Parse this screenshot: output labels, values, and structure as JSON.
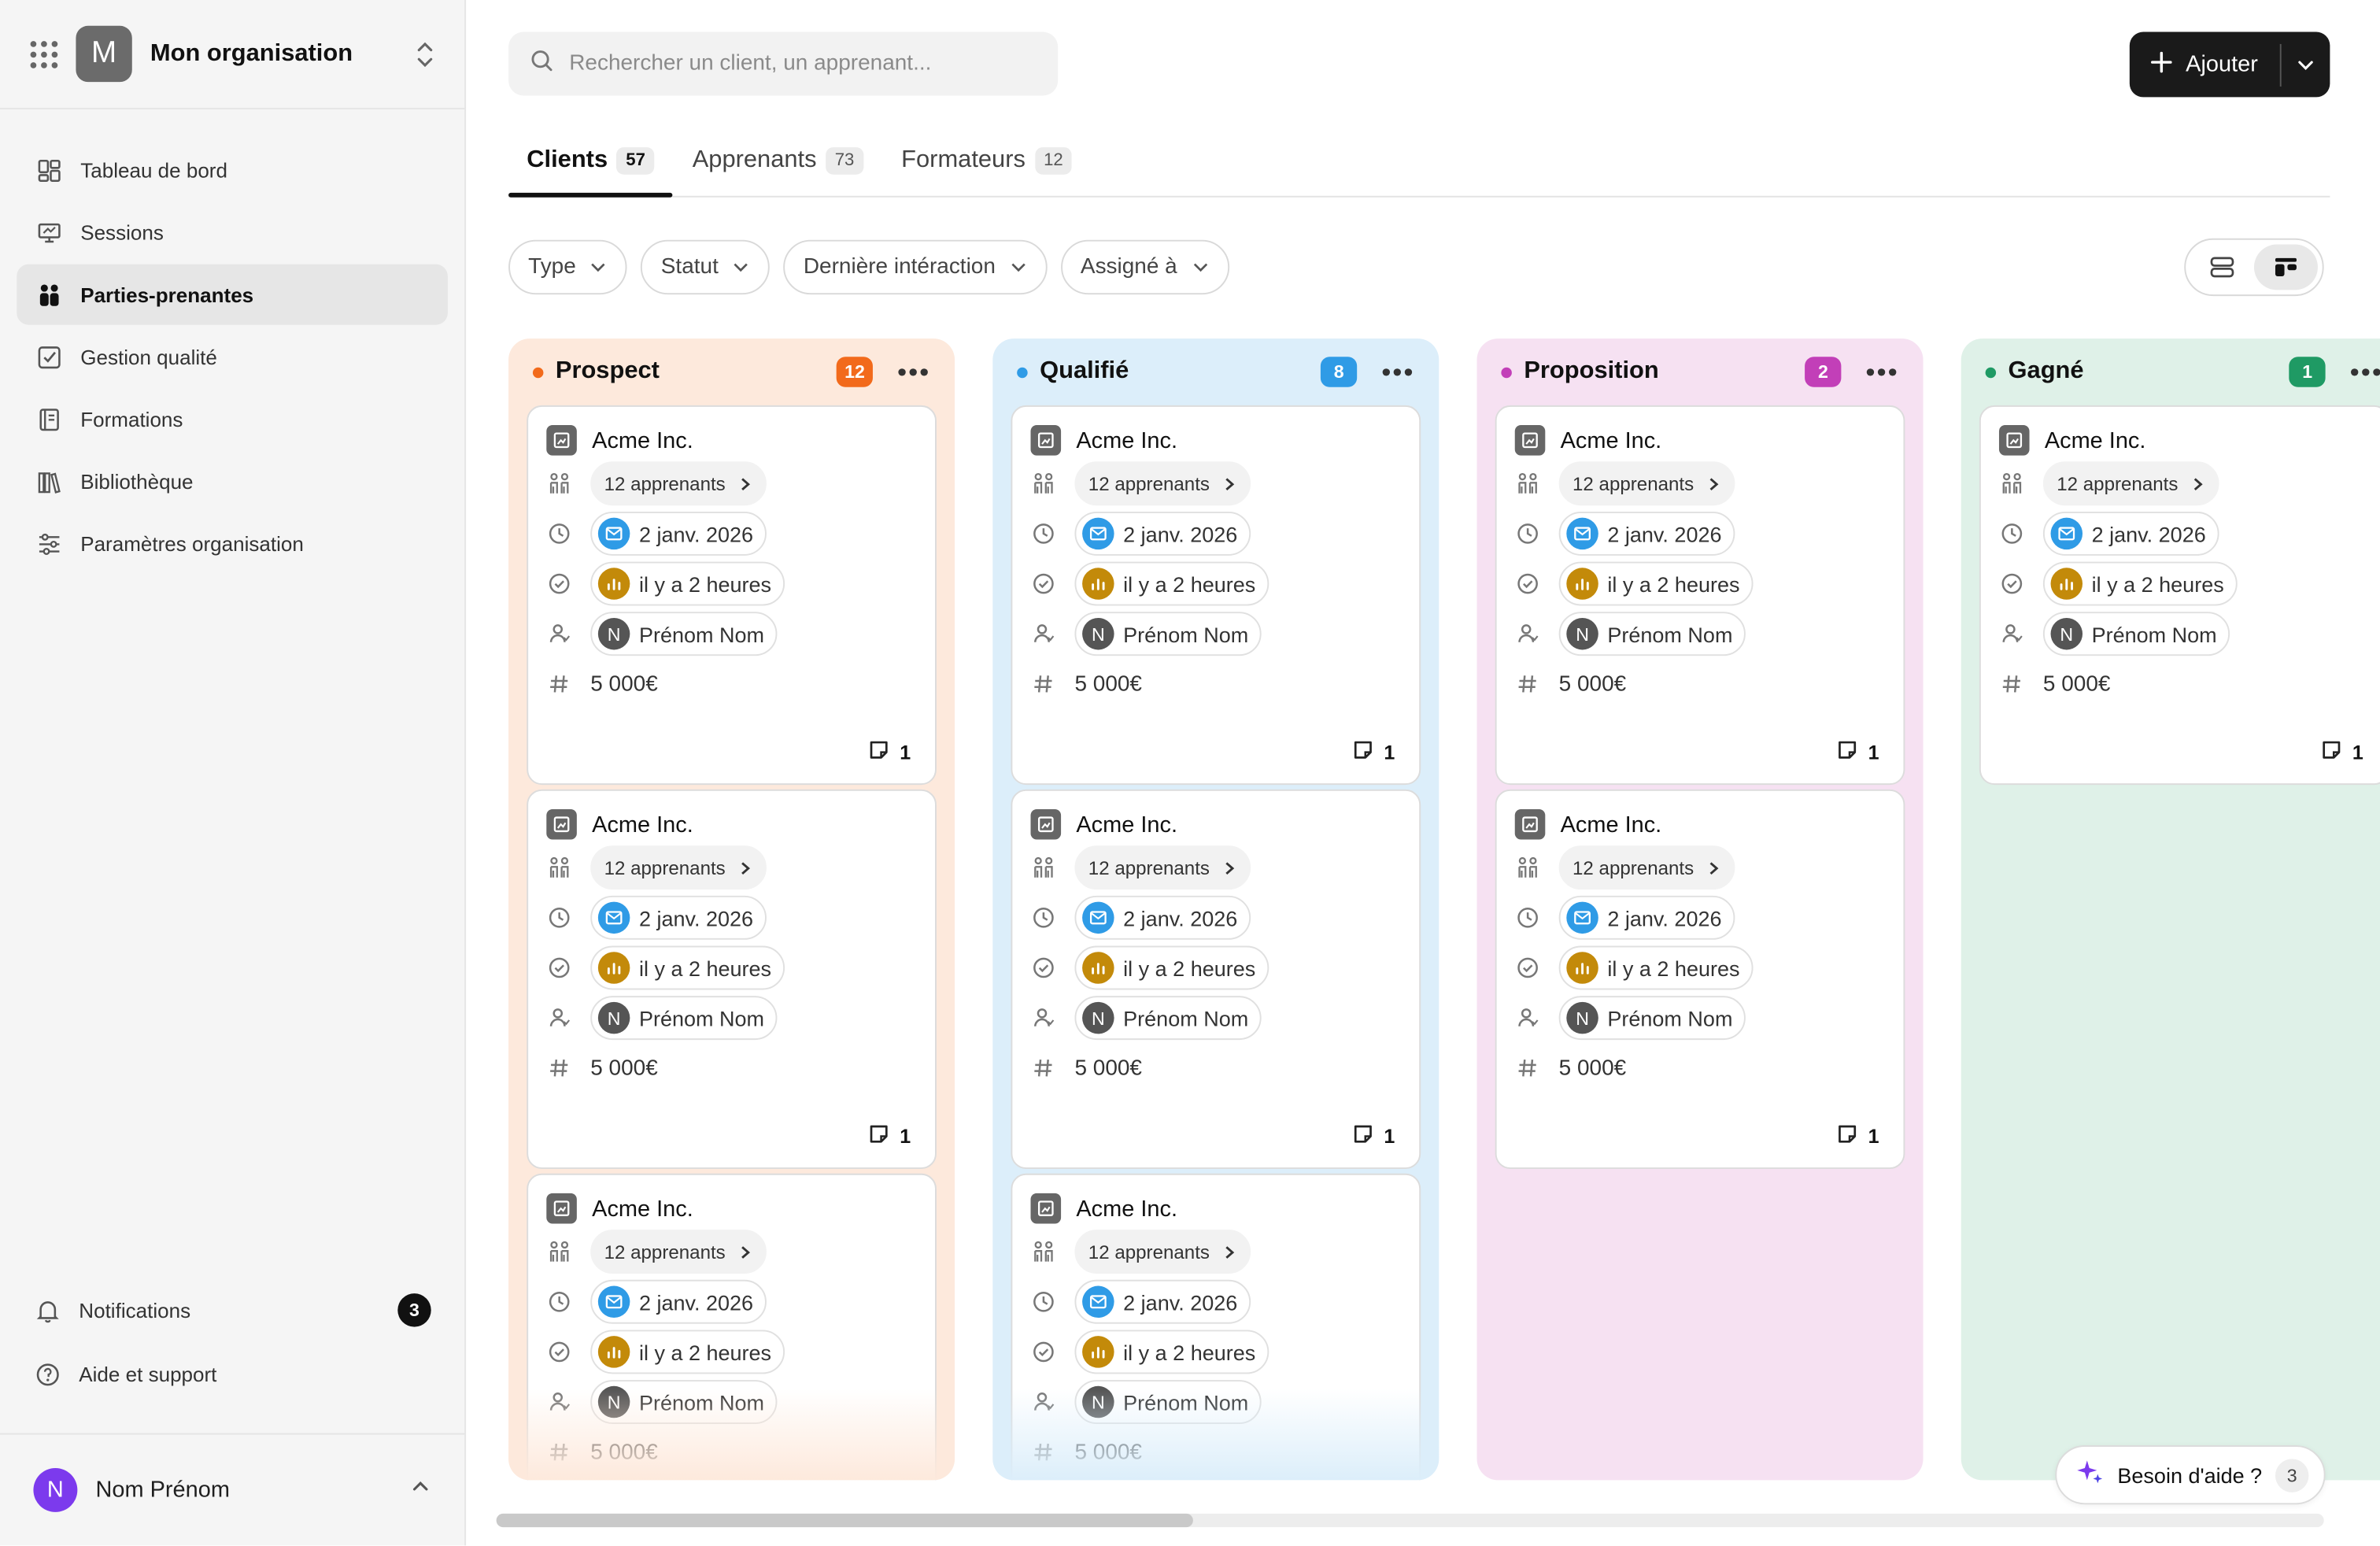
{
  "org": {
    "initial": "M",
    "name": "Mon organisation"
  },
  "nav": [
    {
      "label": "Tableau de bord",
      "icon": "dashboard-icon",
      "active": false
    },
    {
      "label": "Sessions",
      "icon": "presentation-icon",
      "active": false
    },
    {
      "label": "Parties-prenantes",
      "icon": "people-icon",
      "active": true
    },
    {
      "label": "Gestion qualité",
      "icon": "checkbox-icon",
      "active": false
    },
    {
      "label": "Formations",
      "icon": "book-icon",
      "active": false
    },
    {
      "label": "Bibliothèque",
      "icon": "library-icon",
      "active": false
    },
    {
      "label": "Paramètres organisation",
      "icon": "sliders-icon",
      "active": false
    }
  ],
  "utilities": {
    "notifications": {
      "label": "Notifications",
      "count": "3"
    },
    "help": {
      "label": "Aide et support"
    }
  },
  "user": {
    "initial": "N",
    "name": "Nom Prénom"
  },
  "search": {
    "placeholder": "Rechercher un client, un apprenant..."
  },
  "add_button": {
    "label": "Ajouter"
  },
  "tabs": [
    {
      "label": "Clients",
      "count": "57",
      "active": true
    },
    {
      "label": "Apprenants",
      "count": "73",
      "active": false
    },
    {
      "label": "Formateurs",
      "count": "12",
      "active": false
    }
  ],
  "filters": [
    {
      "label": "Type"
    },
    {
      "label": "Statut"
    },
    {
      "label": "Dernière intéraction"
    },
    {
      "label": "Assigné à"
    }
  ],
  "columns": [
    {
      "title": "Prospect",
      "count": "12",
      "accent": "#f26a1b",
      "bg": "#fde9dc",
      "card_count": 3
    },
    {
      "title": "Qualifié",
      "count": "8",
      "accent": "#2f9be6",
      "bg": "#dceefa",
      "card_count": 3
    },
    {
      "title": "Proposition",
      "count": "2",
      "accent": "#c23fb8",
      "bg": "#f6e1f2",
      "card_count": 2
    },
    {
      "title": "Gagné",
      "count": "1",
      "accent": "#1f9a64",
      "bg": "#dff1e8",
      "card_count": 1
    }
  ],
  "card": {
    "company": "Acme Inc.",
    "learners": "12 apprenants",
    "date": "2 janv. 2026",
    "last_activity": "il y a 2 heures",
    "assignee_initial": "N",
    "assignee": "Prénom Nom",
    "amount": "5 000€",
    "notes": "1"
  },
  "help_widget": {
    "label": "Besoin d'aide ?",
    "count": "3"
  },
  "colors": {
    "primary": "#1a1a1a",
    "active_bg": "#e6e6e6"
  }
}
